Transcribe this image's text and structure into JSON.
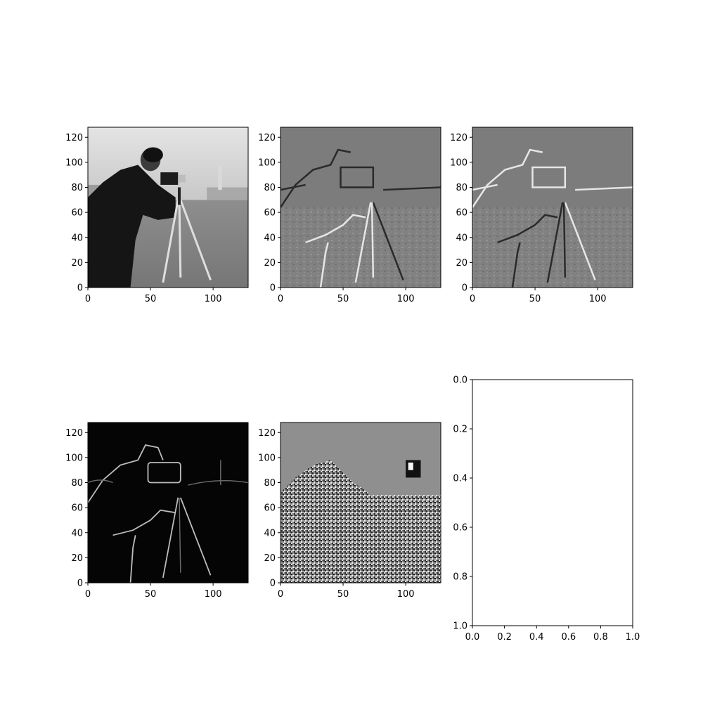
{
  "figure": {
    "background": "#ffffff",
    "cmap": "gray"
  },
  "chart_data": [
    {
      "type": "heatmap",
      "panel": "original",
      "description_hidden": true,
      "content": "grayscale photo: person operating a camera on a tripod, buildings on horizon, bright sky, grass field",
      "image_size": [
        128,
        128
      ],
      "xlim": [
        0,
        128
      ],
      "ylim": [
        128,
        0
      ],
      "xticks": [
        "0",
        "50",
        "100"
      ],
      "yticks": [
        "0",
        "20",
        "40",
        "60",
        "80",
        "100",
        "120"
      ]
    },
    {
      "type": "heatmap",
      "panel": "gradient-x",
      "content": "horizontal gradient (mid-gray background with dark/light edges)",
      "image_size": [
        128,
        128
      ],
      "xlim": [
        0,
        128
      ],
      "ylim": [
        128,
        0
      ],
      "xticks": [
        "0",
        "50",
        "100"
      ],
      "yticks": [
        "0",
        "20",
        "40",
        "60",
        "80",
        "100",
        "120"
      ]
    },
    {
      "type": "heatmap",
      "panel": "gradient-y",
      "content": "vertical gradient (mid-gray background with dark/light edges)",
      "image_size": [
        128,
        128
      ],
      "xlim": [
        0,
        128
      ],
      "ylim": [
        128,
        0
      ],
      "xticks": [
        "0",
        "50",
        "100"
      ],
      "yticks": [
        "0",
        "20",
        "40",
        "60",
        "80",
        "100",
        "120"
      ]
    },
    {
      "type": "heatmap",
      "panel": "gradient-magnitude",
      "content": "edge magnitude (black background with bright outlines)",
      "image_size": [
        128,
        128
      ],
      "xlim": [
        0,
        128
      ],
      "ylim": [
        128,
        0
      ],
      "xticks": [
        "0",
        "50",
        "100"
      ],
      "yticks": [
        "0",
        "20",
        "40",
        "60",
        "80",
        "100",
        "120"
      ]
    },
    {
      "type": "heatmap",
      "panel": "gradient-direction",
      "content": "gradient orientation (noisy black/white/gray texture)",
      "image_size": [
        128,
        128
      ],
      "xlim": [
        0,
        128
      ],
      "ylim": [
        128,
        0
      ],
      "xticks": [
        "0",
        "50",
        "100"
      ],
      "yticks": [
        "0",
        "20",
        "40",
        "60",
        "80",
        "100",
        "120"
      ]
    },
    {
      "type": "line",
      "panel": "empty",
      "series": [],
      "xlim": [
        0.0,
        1.0
      ],
      "ylim": [
        0.0,
        1.0
      ],
      "xticks": [
        "0.0",
        "0.2",
        "0.4",
        "0.6",
        "0.8",
        "1.0"
      ],
      "yticks": [
        "0.0",
        "0.2",
        "0.4",
        "0.6",
        "0.8",
        "1.0"
      ]
    }
  ]
}
